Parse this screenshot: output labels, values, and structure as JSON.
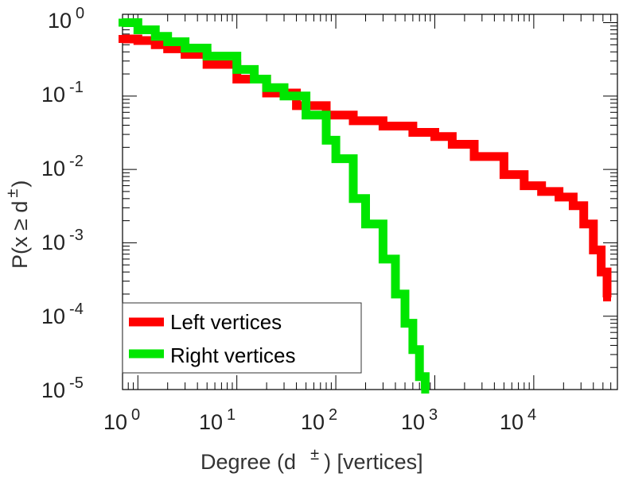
{
  "chart_data": {
    "type": "line",
    "scale": "log-log",
    "xlabel": {
      "main": "Degree (d",
      "sup": "±",
      "tail": ") [vertices]"
    },
    "ylabel": {
      "main": "P(x ≥ d",
      "sup": "±",
      "tail": ")"
    },
    "xlim": [
      0.7,
      70000
    ],
    "ylim": [
      1e-05,
      1.3
    ],
    "x_ticks": [
      {
        "base": "10",
        "exp": "0"
      },
      {
        "base": "10",
        "exp": "1"
      },
      {
        "base": "10",
        "exp": "2"
      },
      {
        "base": "10",
        "exp": "3"
      },
      {
        "base": "10",
        "exp": "4"
      }
    ],
    "y_ticks": [
      {
        "base": "10",
        "exp": "0"
      },
      {
        "base": "10",
        "exp": "-1"
      },
      {
        "base": "10",
        "exp": "-2"
      },
      {
        "base": "10",
        "exp": "-3"
      },
      {
        "base": "10",
        "exp": "-4"
      },
      {
        "base": "10",
        "exp": "-5"
      }
    ],
    "grid": false,
    "legend_position": "bottom-left",
    "series": [
      {
        "name": "Left vertices",
        "color": "#ff0000",
        "x": [
          0.7,
          1,
          1.5,
          2,
          3,
          5,
          10,
          20,
          40,
          80,
          150,
          300,
          600,
          1000,
          1500,
          2500,
          5000,
          8000,
          12000,
          18000,
          25000,
          32000,
          40000,
          48000,
          55000
        ],
        "y": [
          0.6,
          0.57,
          0.5,
          0.44,
          0.37,
          0.27,
          0.17,
          0.11,
          0.074,
          0.055,
          0.046,
          0.039,
          0.032,
          0.028,
          0.022,
          0.015,
          0.0085,
          0.006,
          0.005,
          0.0042,
          0.0032,
          0.0018,
          0.0008,
          0.0004,
          0.00018
        ]
      },
      {
        "name": "Right vertices",
        "color": "#00e600",
        "x": [
          0.7,
          1,
          1.5,
          2,
          3,
          5,
          10,
          15,
          20,
          30,
          50,
          80,
          100,
          150,
          200,
          300,
          400,
          500,
          600,
          700,
          800
        ],
        "y": [
          1.0,
          0.8,
          0.65,
          0.55,
          0.45,
          0.35,
          0.23,
          0.17,
          0.13,
          0.1,
          0.055,
          0.025,
          0.014,
          0.004,
          0.0018,
          0.0006,
          0.0002,
          8e-05,
          3.5e-05,
          1.5e-05,
          1e-05
        ]
      }
    ]
  }
}
